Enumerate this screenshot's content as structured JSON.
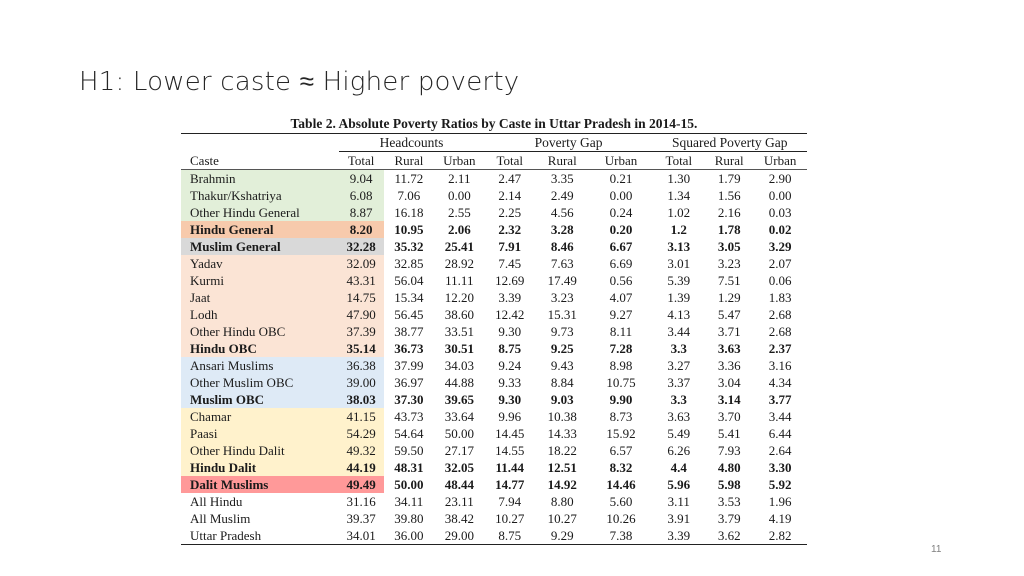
{
  "slide": {
    "title": "H1: Lower caste ≈ Higher poverty",
    "page_number": "11"
  },
  "table": {
    "caption": "Table 2. Absolute Poverty Ratios by Caste in Uttar Pradesh in 2014-15.",
    "groups": [
      "Headcounts",
      "Poverty Gap",
      "Squared Poverty Gap"
    ],
    "columns": [
      "Caste",
      "Total",
      "Rural",
      "Urban",
      "Total",
      "Rural",
      "Urban",
      "Total",
      "Rural",
      "Urban"
    ],
    "highlight_colors": {
      "green": "#e2efd9",
      "salmon": "#f7caac",
      "grey": "#d9d9d9",
      "peach": "#fbe4d5",
      "blue": "#deeaf6",
      "yellow": "#fff2cc",
      "red": "#ff9999"
    },
    "rows": [
      {
        "caste": "Brahmin",
        "values": [
          "9.04",
          "11.72",
          "2.11",
          "2.47",
          "3.35",
          "0.21",
          "1.30",
          "1.79",
          "2.90"
        ]
      },
      {
        "caste": "Thakur/Kshatriya",
        "values": [
          "6.08",
          "7.06",
          "0.00",
          "2.14",
          "2.49",
          "0.00",
          "1.34",
          "1.56",
          "0.00"
        ]
      },
      {
        "caste": "Other Hindu General",
        "values": [
          "8.87",
          "16.18",
          "2.55",
          "2.25",
          "4.56",
          "0.24",
          "1.02",
          "2.16",
          "0.03"
        ]
      },
      {
        "caste": "Hindu General",
        "values": [
          "8.20",
          "10.95",
          "2.06",
          "2.32",
          "3.28",
          "0.20",
          "1.2",
          "1.78",
          "0.02"
        ]
      },
      {
        "caste": "Muslim General",
        "values": [
          "32.28",
          "35.32",
          "25.41",
          "7.91",
          "8.46",
          "6.67",
          "3.13",
          "3.05",
          "3.29"
        ]
      },
      {
        "caste": "Yadav",
        "values": [
          "32.09",
          "32.85",
          "28.92",
          "7.45",
          "7.63",
          "6.69",
          "3.01",
          "3.23",
          "2.07"
        ]
      },
      {
        "caste": "Kurmi",
        "values": [
          "43.31",
          "56.04",
          "11.11",
          "12.69",
          "17.49",
          "0.56",
          "5.39",
          "7.51",
          "0.06"
        ]
      },
      {
        "caste": "Jaat",
        "values": [
          "14.75",
          "15.34",
          "12.20",
          "3.39",
          "3.23",
          "4.07",
          "1.39",
          "1.29",
          "1.83"
        ]
      },
      {
        "caste": "Lodh",
        "values": [
          "47.90",
          "56.45",
          "38.60",
          "12.42",
          "15.31",
          "9.27",
          "4.13",
          "5.47",
          "2.68"
        ]
      },
      {
        "caste": "Other Hindu OBC",
        "values": [
          "37.39",
          "38.77",
          "33.51",
          "9.30",
          "9.73",
          "8.11",
          "3.44",
          "3.71",
          "2.68"
        ]
      },
      {
        "caste": "Hindu OBC",
        "values": [
          "35.14",
          "36.73",
          "30.51",
          "8.75",
          "9.25",
          "7.28",
          "3.3",
          "3.63",
          "2.37"
        ]
      },
      {
        "caste": "Ansari Muslims",
        "values": [
          "36.38",
          "37.99",
          "34.03",
          "9.24",
          "9.43",
          "8.98",
          "3.27",
          "3.36",
          "3.16"
        ]
      },
      {
        "caste": "Other Muslim OBC",
        "values": [
          "39.00",
          "36.97",
          "44.88",
          "9.33",
          "8.84",
          "10.75",
          "3.37",
          "3.04",
          "4.34"
        ]
      },
      {
        "caste": "Muslim OBC",
        "values": [
          "38.03",
          "37.30",
          "39.65",
          "9.30",
          "9.03",
          "9.90",
          "3.3",
          "3.14",
          "3.77"
        ]
      },
      {
        "caste": "Chamar",
        "values": [
          "41.15",
          "43.73",
          "33.64",
          "9.96",
          "10.38",
          "8.73",
          "3.63",
          "3.70",
          "3.44"
        ]
      },
      {
        "caste": "Paasi",
        "values": [
          "54.29",
          "54.64",
          "50.00",
          "14.45",
          "14.33",
          "15.92",
          "5.49",
          "5.41",
          "6.44"
        ]
      },
      {
        "caste": "Other Hindu Dalit",
        "values": [
          "49.32",
          "59.50",
          "27.17",
          "14.55",
          "18.22",
          "6.57",
          "6.26",
          "7.93",
          "2.64"
        ]
      },
      {
        "caste": "Hindu Dalit",
        "values": [
          "44.19",
          "48.31",
          "32.05",
          "11.44",
          "12.51",
          "8.32",
          "4.4",
          "4.80",
          "3.30"
        ]
      },
      {
        "caste": "Dalit Muslims",
        "values": [
          "49.49",
          "50.00",
          "48.44",
          "14.77",
          "14.92",
          "14.46",
          "5.96",
          "5.98",
          "5.92"
        ]
      },
      {
        "caste": "All Hindu",
        "values": [
          "31.16",
          "34.11",
          "23.11",
          "7.94",
          "8.80",
          "5.60",
          "3.11",
          "3.53",
          "1.96"
        ]
      },
      {
        "caste": "All Muslim",
        "values": [
          "39.37",
          "39.80",
          "38.42",
          "10.27",
          "10.27",
          "10.26",
          "3.91",
          "3.79",
          "4.19"
        ]
      },
      {
        "caste": "Uttar Pradesh",
        "values": [
          "34.01",
          "36.00",
          "29.00",
          "8.75",
          "9.29",
          "7.38",
          "3.39",
          "3.62",
          "2.82"
        ]
      }
    ]
  }
}
